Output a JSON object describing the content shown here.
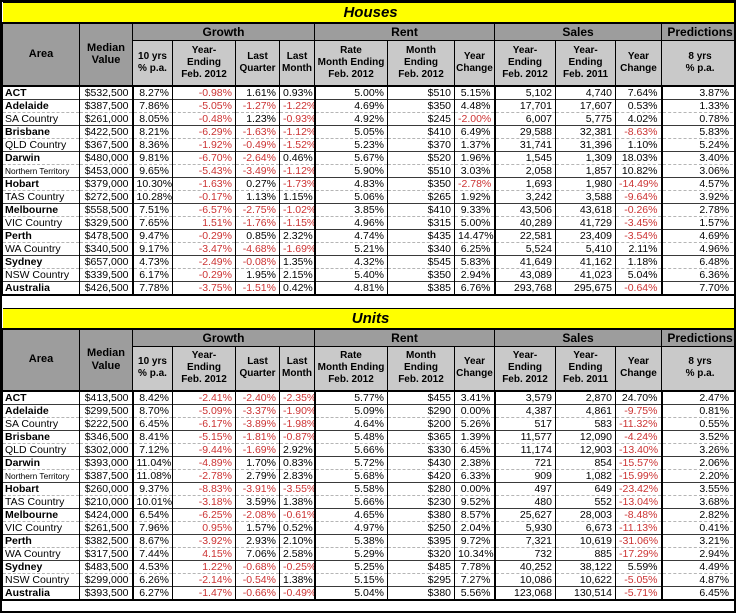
{
  "colors": {
    "title_bg": "#ffff00",
    "header_bg": "#9d9d9d",
    "subheader_bg": "#c9c9c9",
    "negative": "#cc3333"
  },
  "header": {
    "area": "Area",
    "median": "Median\nValue",
    "groups": [
      "Growth",
      "Rent",
      "Sales",
      "Predictions"
    ],
    "sub": [
      "10 yrs\n% p.a.",
      "Year-\nEnding\nFeb. 2012",
      "Last\nQuarter",
      "Last\nMonth",
      "Rate\nMonth Ending\nFeb. 2012",
      "Month\nEnding\nFeb. 2012",
      "Year\nChange",
      "Year-\nEnding\nFeb. 2012",
      "Year-\nEnding\nFeb. 2011",
      "Year\nChange",
      "8 yrs\n% p.a."
    ]
  },
  "chart_data": [
    {
      "type": "table",
      "title": "Houses",
      "columns": [
        "Area",
        "Median Value",
        "Growth 10 yrs % p.a.",
        "Growth Year-Ending Feb. 2012",
        "Growth Last Quarter",
        "Growth Last Month",
        "Rent Rate Month Ending Feb. 2012",
        "Rent Month Ending Feb. 2012",
        "Rent Year Change",
        "Sales Year-Ending Feb. 2012",
        "Sales Year-Ending Feb. 2011",
        "Sales Year Change",
        "Predictions 8 yrs % p.a."
      ],
      "rows": [
        {
          "area": "ACT",
          "capital": true,
          "cells": [
            "$532,500",
            "8.27%",
            "-0.98%",
            "1.61%",
            "0.93%",
            "5.00%",
            "$510",
            "5.15%",
            "5,102",
            "4,740",
            "7.64%",
            "3.87%"
          ]
        },
        {
          "area": "Adelaide",
          "capital": true,
          "cells": [
            "$387,500",
            "7.86%",
            "-5.05%",
            "-1.27%",
            "-1.22%",
            "4.69%",
            "$350",
            "4.48%",
            "17,701",
            "17,607",
            "0.53%",
            "1.33%"
          ]
        },
        {
          "area": "SA Country",
          "capital": false,
          "cells": [
            "$261,000",
            "8.05%",
            "-0.48%",
            "1.23%",
            "-0.93%",
            "4.92%",
            "$245",
            "-2.00%",
            "6,007",
            "5,775",
            "4.02%",
            "0.78%"
          ]
        },
        {
          "area": "Brisbane",
          "capital": true,
          "cells": [
            "$422,500",
            "8.21%",
            "-6.29%",
            "-1.63%",
            "-1.12%",
            "5.05%",
            "$410",
            "6.49%",
            "29,588",
            "32,381",
            "-8.63%",
            "5.83%"
          ]
        },
        {
          "area": "QLD Country",
          "capital": false,
          "cells": [
            "$367,500",
            "8.36%",
            "-1.92%",
            "-0.49%",
            "-1.52%",
            "5.23%",
            "$370",
            "1.37%",
            "31,741",
            "31,396",
            "1.10%",
            "5.24%"
          ]
        },
        {
          "area": "Darwin",
          "capital": true,
          "cells": [
            "$480,000",
            "9.81%",
            "-6.70%",
            "-2.64%",
            "0.46%",
            "5.67%",
            "$520",
            "1.96%",
            "1,545",
            "1,309",
            "18.03%",
            "3.40%"
          ]
        },
        {
          "area": "Northern Territory",
          "capital": false,
          "cells": [
            "$453,000",
            "9.65%",
            "-5.43%",
            "-3.49%",
            "-1.12%",
            "5.90%",
            "$510",
            "3.03%",
            "2,058",
            "1,857",
            "10.82%",
            "3.06%"
          ]
        },
        {
          "area": "Hobart",
          "capital": true,
          "cells": [
            "$379,000",
            "10.30%",
            "-1.63%",
            "0.27%",
            "-1.73%",
            "4.83%",
            "$350",
            "-2.78%",
            "1,693",
            "1,980",
            "-14.49%",
            "4.57%"
          ]
        },
        {
          "area": "TAS Country",
          "capital": false,
          "cells": [
            "$272,500",
            "10.28%",
            "-0.17%",
            "1.13%",
            "1.15%",
            "5.06%",
            "$265",
            "1.92%",
            "3,242",
            "3,588",
            "-9.64%",
            "3.92%"
          ]
        },
        {
          "area": "Melbourne",
          "capital": true,
          "cells": [
            "$558,500",
            "7.51%",
            "-6.57%",
            "-2.75%",
            "-1.02%",
            "3.85%",
            "$410",
            "9.33%",
            "43,506",
            "43,618",
            "-0.26%",
            "2.78%"
          ]
        },
        {
          "area": "VIC Country",
          "capital": false,
          "cells": [
            "$329,500",
            "7.65%",
            "1.51%",
            "-1.76%",
            "-1.15%",
            "4.96%",
            "$315",
            "5.00%",
            "40,289",
            "41,729",
            "-3.45%",
            "1.57%"
          ]
        },
        {
          "area": "Perth",
          "capital": true,
          "cells": [
            "$478,500",
            "9.47%",
            "-0.29%",
            "0.85%",
            "2.32%",
            "4.74%",
            "$435",
            "14.47%",
            "22,581",
            "23,409",
            "-3.54%",
            "4.69%"
          ]
        },
        {
          "area": "WA Country",
          "capital": false,
          "cells": [
            "$340,500",
            "9.17%",
            "-3.47%",
            "-4.68%",
            "-1.69%",
            "5.21%",
            "$340",
            "6.25%",
            "5,524",
            "5,410",
            "2.11%",
            "4.96%"
          ]
        },
        {
          "area": "Sydney",
          "capital": true,
          "cells": [
            "$657,000",
            "4.73%",
            "-2.49%",
            "-0.08%",
            "1.35%",
            "4.32%",
            "$545",
            "5.83%",
            "41,649",
            "41,162",
            "1.18%",
            "6.48%"
          ]
        },
        {
          "area": "NSW Country",
          "capital": false,
          "cells": [
            "$339,500",
            "6.17%",
            "-0.29%",
            "1.95%",
            "2.15%",
            "5.40%",
            "$350",
            "2.94%",
            "43,089",
            "41,023",
            "5.04%",
            "6.36%"
          ]
        },
        {
          "area": "Australia",
          "capital": true,
          "cells": [
            "$426,500",
            "7.78%",
            "-3.75%",
            "-1.51%",
            "0.42%",
            "4.81%",
            "$385",
            "6.76%",
            "293,768",
            "295,675",
            "-0.64%",
            "7.70%"
          ]
        }
      ]
    },
    {
      "type": "table",
      "title": "Units",
      "columns": [
        "Area",
        "Median Value",
        "Growth 10 yrs % p.a.",
        "Growth Year-Ending Feb. 2012",
        "Growth Last Quarter",
        "Growth Last Month",
        "Rent Rate Month Ending Feb. 2012",
        "Rent Month Ending Feb. 2012",
        "Rent Year Change",
        "Sales Year-Ending Feb. 2012",
        "Sales Year-Ending Feb. 2011",
        "Sales Year Change",
        "Predictions 8 yrs % p.a."
      ],
      "rows": [
        {
          "area": "ACT",
          "capital": true,
          "cells": [
            "$413,500",
            "8.42%",
            "-2.41%",
            "-2.40%",
            "-2.35%",
            "5.77%",
            "$455",
            "3.41%",
            "3,579",
            "2,870",
            "24.70%",
            "2.47%"
          ]
        },
        {
          "area": "Adelaide",
          "capital": true,
          "cells": [
            "$299,500",
            "8.70%",
            "-5.09%",
            "-3.37%",
            "-1.90%",
            "5.09%",
            "$290",
            "0.00%",
            "4,387",
            "4,861",
            "-9.75%",
            "0.81%"
          ]
        },
        {
          "area": "SA Country",
          "capital": false,
          "cells": [
            "$222,500",
            "6.45%",
            "-6.17%",
            "-3.89%",
            "-1.98%",
            "4.64%",
            "$200",
            "5.26%",
            "517",
            "583",
            "-11.32%",
            "0.55%"
          ]
        },
        {
          "area": "Brisbane",
          "capital": true,
          "cells": [
            "$346,500",
            "8.41%",
            "-5.15%",
            "-1.81%",
            "-0.87%",
            "5.48%",
            "$365",
            "1.39%",
            "11,577",
            "12,090",
            "-4.24%",
            "3.52%"
          ]
        },
        {
          "area": "QLD Country",
          "capital": false,
          "cells": [
            "$302,000",
            "7.12%",
            "-9.44%",
            "-1.69%",
            "2.92%",
            "5.66%",
            "$330",
            "6.45%",
            "11,174",
            "12,903",
            "-13.40%",
            "3.26%"
          ]
        },
        {
          "area": "Darwin",
          "capital": true,
          "cells": [
            "$393,000",
            "11.04%",
            "-4.89%",
            "1.70%",
            "0.83%",
            "5.72%",
            "$430",
            "2.38%",
            "721",
            "854",
            "-15.57%",
            "2.06%"
          ]
        },
        {
          "area": "Northern Territory",
          "capital": false,
          "cells": [
            "$387,500",
            "11.08%",
            "-2.78%",
            "2.79%",
            "2.83%",
            "5.68%",
            "$420",
            "6.33%",
            "909",
            "1,082",
            "-15.99%",
            "2.20%"
          ]
        },
        {
          "area": "Hobart",
          "capital": true,
          "cells": [
            "$260,000",
            "9.37%",
            "-8.83%",
            "-3.91%",
            "-3.55%",
            "5.58%",
            "$280",
            "0.00%",
            "497",
            "649",
            "-23.42%",
            "3.55%"
          ]
        },
        {
          "area": "TAS Country",
          "capital": false,
          "cells": [
            "$210,000",
            "10.01%",
            "-3.18%",
            "3.59%",
            "1.38%",
            "5.66%",
            "$230",
            "9.52%",
            "480",
            "552",
            "-13.04%",
            "3.68%"
          ]
        },
        {
          "area": "Melbourne",
          "capital": true,
          "cells": [
            "$424,000",
            "6.54%",
            "-6.25%",
            "-2.08%",
            "-0.61%",
            "4.65%",
            "$380",
            "8.57%",
            "25,627",
            "28,003",
            "-8.48%",
            "2.82%"
          ]
        },
        {
          "area": "VIC Country",
          "capital": false,
          "cells": [
            "$261,500",
            "7.96%",
            "0.95%",
            "1.57%",
            "0.52%",
            "4.97%",
            "$250",
            "2.04%",
            "5,930",
            "6,673",
            "-11.13%",
            "0.41%"
          ]
        },
        {
          "area": "Perth",
          "capital": true,
          "cells": [
            "$382,500",
            "8.67%",
            "-3.92%",
            "2.93%",
            "2.10%",
            "5.38%",
            "$395",
            "9.72%",
            "7,321",
            "10,619",
            "-31.06%",
            "3.21%"
          ]
        },
        {
          "area": "WA Country",
          "capital": false,
          "cells": [
            "$317,500",
            "7.44%",
            "4.15%",
            "7.06%",
            "2.58%",
            "5.29%",
            "$320",
            "10.34%",
            "732",
            "885",
            "-17.29%",
            "2.94%"
          ]
        },
        {
          "area": "Sydney",
          "capital": true,
          "cells": [
            "$483,500",
            "4.53%",
            "1.22%",
            "-0.68%",
            "-0.25%",
            "5.25%",
            "$485",
            "7.78%",
            "40,252",
            "38,122",
            "5.59%",
            "4.49%"
          ]
        },
        {
          "area": "NSW Country",
          "capital": false,
          "cells": [
            "$299,000",
            "6.26%",
            "-2.14%",
            "-0.54%",
            "1.38%",
            "5.15%",
            "$295",
            "7.27%",
            "10,086",
            "10,622",
            "-5.05%",
            "4.87%"
          ]
        },
        {
          "area": "Australia",
          "capital": true,
          "cells": [
            "$393,500",
            "6.27%",
            "-1.47%",
            "-0.66%",
            "-0.49%",
            "5.04%",
            "$380",
            "5.56%",
            "123,068",
            "130,514",
            "-5.71%",
            "6.45%"
          ]
        }
      ]
    }
  ]
}
